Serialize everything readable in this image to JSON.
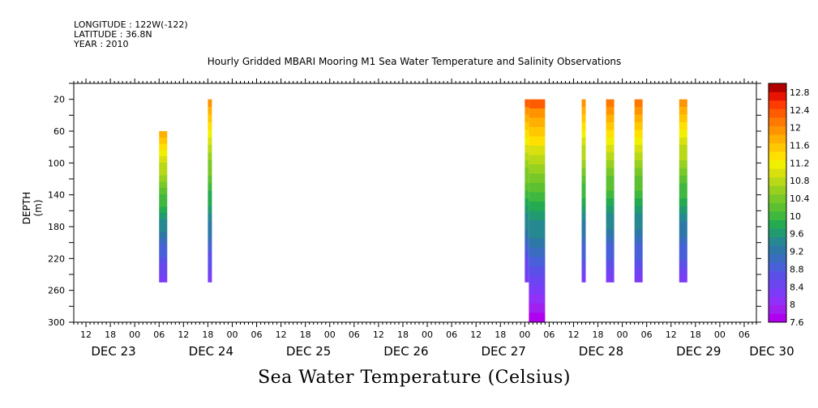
{
  "header": {
    "longitude": "LONGITUDE : 122W(-122)",
    "latitude": "LATITUDE : 36.8N",
    "year": "YEAR : 2010"
  },
  "chart_data": {
    "type": "heatmap",
    "title": "Hourly Gridded MBARI Mooring M1 Sea Water Temperature and Salinity Observations",
    "xlabel": "Sea Water Temperature (Celsius)",
    "ylabel": "DEPTH (m)",
    "x_axis": {
      "start": "2010-12-23T09:00",
      "end": "2010-12-30T09:00",
      "hour_ticks": [
        "12",
        "18",
        "00",
        "06",
        "12",
        "18",
        "00",
        "06",
        "12",
        "18",
        "00",
        "06",
        "12",
        "18",
        "00",
        "06",
        "12",
        "18",
        "00",
        "06",
        "12",
        "18",
        "00",
        "06",
        "12",
        "18",
        "00",
        "06"
      ],
      "day_labels": [
        "DEC 23",
        "DEC 24",
        "DEC 25",
        "DEC 26",
        "DEC 27",
        "DEC 28",
        "DEC 29",
        "DEC 30"
      ]
    },
    "y_axis": {
      "range": [
        0,
        300
      ],
      "reversed": true,
      "ticks": [
        20,
        60,
        100,
        140,
        180,
        220,
        260,
        300
      ]
    },
    "colorbar": {
      "levels": [
        7.6,
        7.8,
        8.0,
        8.2,
        8.4,
        8.6,
        8.8,
        9.0,
        9.2,
        9.4,
        9.6,
        9.8,
        10.0,
        10.2,
        10.4,
        10.6,
        10.8,
        11.0,
        11.2,
        11.4,
        11.6,
        11.8,
        12.0,
        12.2,
        12.4,
        12.6,
        12.8,
        13.0
      ],
      "labels": [
        "12.8",
        "12.4",
        "12",
        "11.6",
        "11.2",
        "10.8",
        "10.4",
        "10",
        "9.6",
        "9.2",
        "8.8",
        "8.4",
        "8",
        "7.6"
      ],
      "colors": [
        "#b000f0",
        "#a020f0",
        "#9030f8",
        "#7b3cf8",
        "#6a45f0",
        "#5a50e8",
        "#4860d8",
        "#3a6cc0",
        "#2e78a8",
        "#268890",
        "#229a70",
        "#24aa50",
        "#40b840",
        "#5cc030",
        "#78c828",
        "#98d020",
        "#b8d818",
        "#d8e010",
        "#f0f000",
        "#ffe000",
        "#ffc800",
        "#ffb000",
        "#ff9400",
        "#ff7800",
        "#ff5c00",
        "#ff3c00",
        "#e81400",
        "#b00000"
      ]
    },
    "series": [
      {
        "start": "2010-12-24T06:00",
        "end": "2010-12-24T08:00",
        "depth_top": 60,
        "depth_bottom": 250,
        "temp_top": 12.1,
        "temp_bottom": 8.2
      },
      {
        "start": "2010-12-24T18:00",
        "end": "2010-12-24T19:00",
        "depth_top": 20,
        "depth_bottom": 250,
        "temp_top": 12.2,
        "temp_bottom": 8.3
      },
      {
        "start": "2010-12-28T00:00",
        "end": "2010-12-28T01:00",
        "depth_top": 20,
        "depth_bottom": 250,
        "temp_top": 12.6,
        "temp_bottom": 8.2
      },
      {
        "start": "2010-12-28T01:00",
        "end": "2010-12-28T05:00",
        "depth_top": 20,
        "depth_bottom": 300,
        "temp_top": 12.6,
        "temp_bottom": 7.7
      },
      {
        "start": "2010-12-28T14:00",
        "end": "2010-12-28T15:00",
        "depth_top": 20,
        "depth_bottom": 250,
        "temp_top": 12.3,
        "temp_bottom": 8.3
      },
      {
        "start": "2010-12-28T20:00",
        "end": "2010-12-28T22:00",
        "depth_top": 20,
        "depth_bottom": 250,
        "temp_top": 12.4,
        "temp_bottom": 8.3
      },
      {
        "start": "2010-12-29T03:00",
        "end": "2010-12-29T05:00",
        "depth_top": 20,
        "depth_bottom": 250,
        "temp_top": 12.4,
        "temp_bottom": 8.3
      },
      {
        "start": "2010-12-29T14:00",
        "end": "2010-12-29T16:00",
        "depth_top": 20,
        "depth_bottom": 250,
        "temp_top": 12.3,
        "temp_bottom": 8.3
      }
    ]
  }
}
